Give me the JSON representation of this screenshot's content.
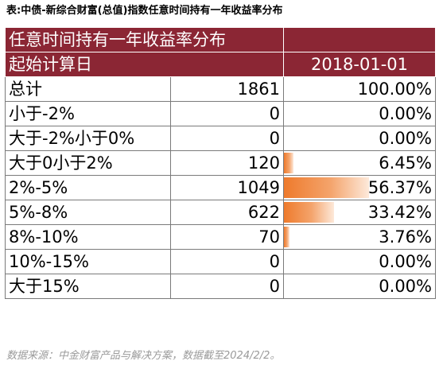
{
  "caption": "表:中债-新综合财富(总值)指数任意时间持有一年收益率分布",
  "table": {
    "title": "任意时间持有一年收益率分布",
    "start_label": "起始计算日",
    "start_date": "2018-01-01",
    "rows": [
      {
        "label": "总计",
        "count": "1861",
        "pct": "100.00%",
        "pct_value": 100.0,
        "bar": false
      },
      {
        "label": "小于-2%",
        "count": "0",
        "pct": "0.00%",
        "pct_value": 0.0,
        "bar": true
      },
      {
        "label": "大于-2%小于0%",
        "count": "0",
        "pct": "0.00%",
        "pct_value": 0.0,
        "bar": true
      },
      {
        "label": "大于0小于2%",
        "count": "120",
        "pct": "6.45%",
        "pct_value": 6.45,
        "bar": true
      },
      {
        "label": "2%-5%",
        "count": "1049",
        "pct": "56.37%",
        "pct_value": 56.37,
        "bar": true
      },
      {
        "label": "5%-8%",
        "count": "622",
        "pct": "33.42%",
        "pct_value": 33.42,
        "bar": true
      },
      {
        "label": "8%-10%",
        "count": "70",
        "pct": "3.76%",
        "pct_value": 3.76,
        "bar": true
      },
      {
        "label": "10%-15%",
        "count": "0",
        "pct": "0.00%",
        "pct_value": 0.0,
        "bar": true
      },
      {
        "label": "大于15%",
        "count": "0",
        "pct": "0.00%",
        "pct_value": 0.0,
        "bar": true
      }
    ]
  },
  "source": "数据来源：中金财富产品与解决方案，数据截至2024/2/2。",
  "colors": {
    "header_bg": "#8b2634",
    "header_text": "#ffffff",
    "bar": "#ee7a2c"
  }
}
